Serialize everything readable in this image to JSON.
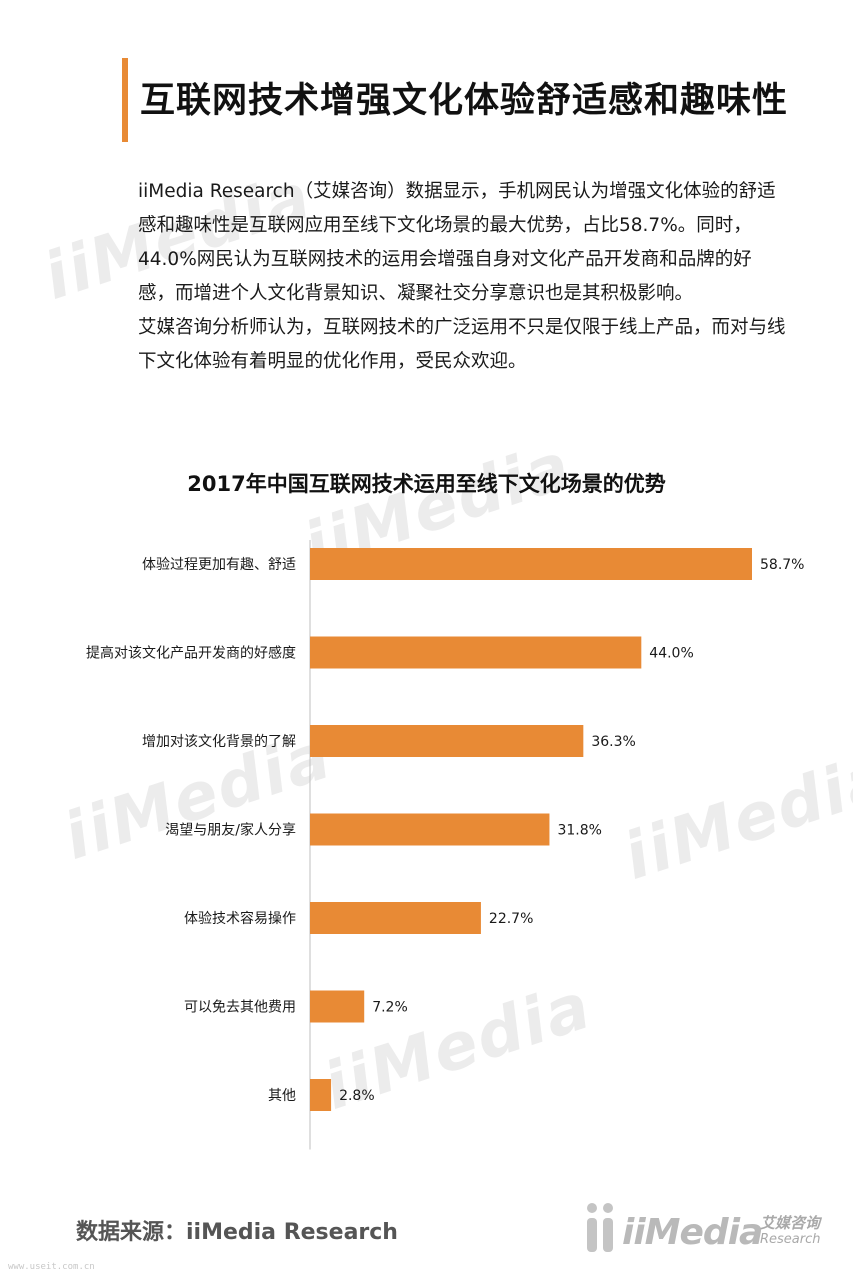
{
  "page": {
    "title": "互联网技术增强文化体验舒适感和趣味性",
    "intro": [
      "iiMedia Research（艾媒咨询）数据显示，手机网民认为增强文化体验的舒适感和趣味性是互联网应用至线下文化场景的最大优势，占比58.7%。同时，44.0%网民认为互联网技术的运用会增强自身对文化产品开发商和品牌的好感，而增进个人文化背景知识、凝聚社交分享意识也是其积极影响。",
      "艾媒咨询分析师认为，互联网技术的广泛运用不只是仅限于线上产品，而对与线下文化体验有着明显的优化作用，受民众欢迎。"
    ],
    "source": "数据来源：iiMedia Research",
    "watermark": "iiMedia",
    "logo": {
      "text": "iiMedia",
      "cn": "艾媒咨询",
      "en": "Research"
    },
    "footer_url": "www.useit.com.cn"
  },
  "colors": {
    "bar": "#e88a35",
    "accent": "#e88a35",
    "axis": "#bfbfbf"
  },
  "chart_data": {
    "type": "bar",
    "orientation": "horizontal",
    "title": "2017年中国互联网技术运用至线下文化场景的优势",
    "categories": [
      "体验过程更加有趣、舒适",
      "提高对该文化产品开发商的好感度",
      "增加对该文化背景的了解",
      "渴望与朋友/家人分享",
      "体验技术容易操作",
      "可以免去其他费用",
      "其他"
    ],
    "values": [
      58.7,
      44.0,
      36.3,
      31.8,
      22.7,
      7.2,
      2.8
    ],
    "labels": [
      "58.7%",
      "44.0%",
      "36.3%",
      "31.8%",
      "22.7%",
      "7.2%",
      "2.8%"
    ],
    "unit": "%",
    "xlim": [
      0,
      58.7
    ],
    "grid": false,
    "legend": "none"
  }
}
